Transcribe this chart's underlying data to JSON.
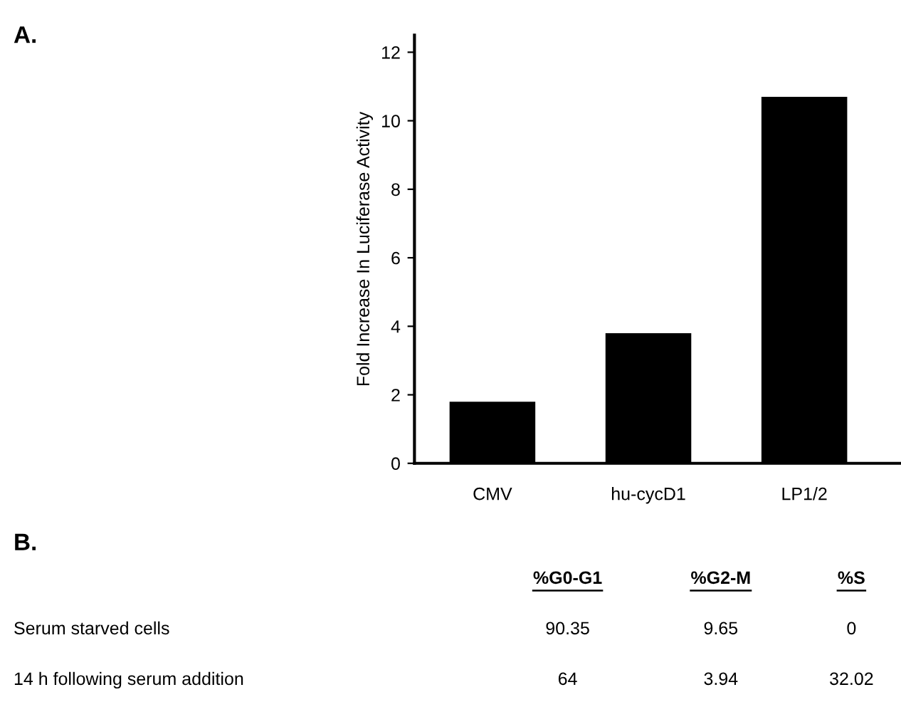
{
  "chart_data": [
    {
      "type": "bar",
      "annotations": [
        "A."
      ],
      "ylabel": "Fold Increase In Luciferase Activity",
      "categories": [
        "CMV",
        "hu-cycD1",
        "LP1/2"
      ],
      "values": [
        1.8,
        3.8,
        10.7
      ],
      "color": "#000000",
      "ylim": [
        0,
        12.5
      ],
      "yticks": [
        0,
        2,
        4,
        6,
        8,
        10,
        12
      ],
      "grid": false
    },
    {
      "type": "other",
      "title": "B.",
      "annotations": [
        "%G0-G1",
        "%G2-M",
        "%S",
        "Serum starved cells",
        "90.35",
        "9.65",
        "0",
        "14 h following serum addition",
        "64",
        "3.94",
        "32.02"
      ]
    }
  ]
}
